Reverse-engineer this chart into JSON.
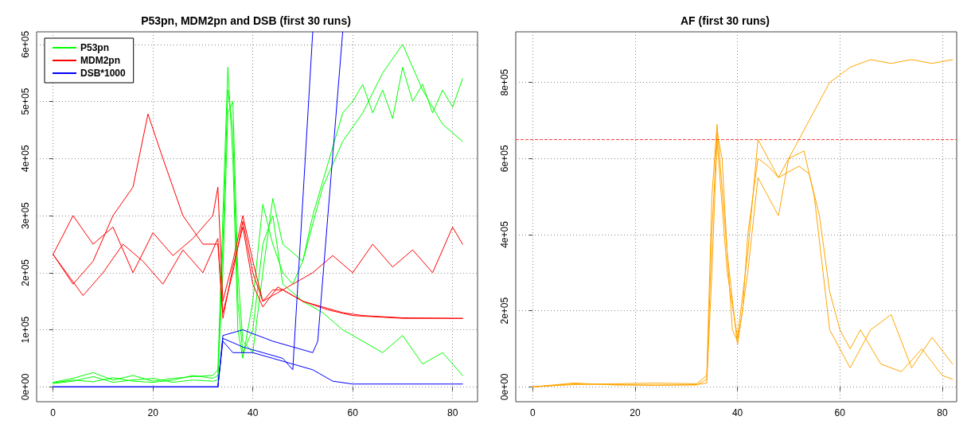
{
  "chart_data": [
    {
      "type": "line",
      "title": "P53pn, MDM2pn and DSB (first 30 runs)",
      "xlim": [
        -3.3,
        85
      ],
      "ylim": [
        -26000,
        622000
      ],
      "xticks": [
        0,
        20,
        40,
        60,
        80
      ],
      "yticks": [
        {
          "value": 0,
          "label": "0e+00"
        },
        {
          "value": 100000,
          "label": "1e+05"
        },
        {
          "value": 200000,
          "label": "2e+05"
        },
        {
          "value": 300000,
          "label": "3e+05"
        },
        {
          "value": 400000,
          "label": "4e+05"
        },
        {
          "value": 500000,
          "label": "5e+05"
        },
        {
          "value": 600000,
          "label": "6e+05"
        }
      ],
      "grid": true,
      "legend": "top left",
      "marker": "none",
      "line_style": "solid",
      "series": [
        {
          "name": "P53pn",
          "color": "#00ff00",
          "x": [
            0,
            4,
            8,
            12,
            16,
            20,
            24,
            28,
            32,
            33,
            34,
            35,
            36,
            37,
            38,
            40,
            42,
            44,
            46,
            48,
            50,
            52,
            54,
            56,
            58,
            60,
            62,
            64,
            66,
            68,
            70,
            72,
            74,
            76,
            78,
            80,
            82
          ],
          "values": [
            8000,
            15000,
            25000,
            12000,
            20000,
            10000,
            15000,
            18000,
            20000,
            30000,
            300000,
            560000,
            400000,
            100000,
            50000,
            150000,
            320000,
            250000,
            200000,
            180000,
            220000,
            300000,
            360000,
            420000,
            480000,
            500000,
            530000,
            480000,
            520000,
            470000,
            560000,
            500000,
            530000,
            480000,
            520000,
            490000,
            540000
          ]
        },
        {
          "color": "#00ff00",
          "x": [
            0,
            4,
            8,
            12,
            16,
            20,
            24,
            28,
            32,
            33,
            34,
            35,
            36,
            37,
            38,
            40,
            42,
            44,
            46,
            50,
            54,
            58,
            62,
            66,
            70,
            74,
            78,
            82
          ],
          "values": [
            6000,
            10000,
            18000,
            8000,
            12000,
            15000,
            8000,
            12000,
            10000,
            12000,
            250000,
            520000,
            450000,
            150000,
            60000,
            100000,
            250000,
            300000,
            180000,
            150000,
            130000,
            100000,
            80000,
            60000,
            90000,
            40000,
            60000,
            20000
          ]
        },
        {
          "color": "#00ff00",
          "x": [
            0,
            4,
            8,
            12,
            16,
            20,
            24,
            28,
            32,
            33,
            34,
            35,
            36,
            37,
            38,
            40,
            42,
            44,
            46,
            50,
            54,
            58,
            62,
            66,
            70,
            74,
            78,
            82
          ],
          "values": [
            7000,
            12000,
            9000,
            16000,
            10000,
            8000,
            12000,
            20000,
            15000,
            20000,
            200000,
            480000,
            500000,
            200000,
            80000,
            60000,
            200000,
            330000,
            250000,
            220000,
            350000,
            430000,
            480000,
            550000,
            600000,
            520000,
            460000,
            430000
          ]
        },
        {
          "name": "MDM2pn",
          "color": "#ff0000",
          "x": [
            0,
            4,
            8,
            12,
            16,
            20,
            24,
            28,
            32,
            33,
            34,
            36,
            38,
            40,
            42,
            44,
            46,
            50,
            54,
            58,
            62,
            70,
            82
          ],
          "values": [
            232000,
            300000,
            250000,
            280000,
            200000,
            270000,
            230000,
            260000,
            300000,
            350000,
            150000,
            220000,
            300000,
            220000,
            150000,
            170000,
            170000,
            150000,
            140000,
            130000,
            125000,
            121000,
            120000
          ]
        },
        {
          "color": "#ff0000",
          "x": [
            0,
            4,
            8,
            12,
            16,
            19,
            22,
            26,
            30,
            33,
            34,
            36,
            38,
            40,
            42,
            44,
            48,
            52,
            56,
            60,
            64,
            68,
            72,
            76,
            80,
            82
          ],
          "values": [
            232000,
            180000,
            220000,
            300000,
            350000,
            478000,
            400000,
            300000,
            250000,
            250000,
            130000,
            200000,
            290000,
            200000,
            150000,
            160000,
            180000,
            200000,
            230000,
            200000,
            250000,
            210000,
            240000,
            200000,
            280000,
            250000
          ]
        },
        {
          "color": "#ff0000",
          "x": [
            0,
            6,
            10,
            14,
            18,
            22,
            26,
            30,
            33,
            34,
            36,
            38,
            40,
            42,
            45,
            50,
            55,
            60,
            70,
            82
          ],
          "values": [
            232000,
            160000,
            200000,
            250000,
            220000,
            180000,
            240000,
            200000,
            260000,
            120000,
            210000,
            280000,
            180000,
            140000,
            175000,
            150000,
            135000,
            125000,
            120000,
            120000
          ]
        },
        {
          "name": "DSB*1000",
          "color": "#0000ff",
          "x": [
            0,
            33,
            34,
            36,
            40,
            44,
            48,
            52,
            56,
            60,
            70,
            82
          ],
          "values": [
            0,
            0,
            80000,
            60000,
            60000,
            50000,
            40000,
            30000,
            10000,
            5000,
            5000,
            5000
          ]
        },
        {
          "color": "#0000ff",
          "x": [
            0,
            33,
            34,
            38,
            44,
            48,
            52,
            53,
            58
          ],
          "values": [
            0,
            0,
            90000,
            100000,
            80000,
            70000,
            60000,
            80000,
            622000
          ]
        },
        {
          "color": "#0000ff",
          "x": [
            0,
            33,
            34,
            38,
            42,
            46,
            48,
            52
          ],
          "values": [
            0,
            0,
            85000,
            70000,
            60000,
            50000,
            30000,
            622000
          ]
        }
      ]
    },
    {
      "type": "line",
      "title": "AF (first 30 runs)",
      "xlim": [
        -3.3,
        82.8
      ],
      "ylim": [
        -39000,
        933000
      ],
      "xticks": [
        0,
        20,
        40,
        60,
        80
      ],
      "yticks": [
        {
          "value": 0,
          "label": "0e+00"
        },
        {
          "value": 200000,
          "label": "2e+05"
        },
        {
          "value": 400000,
          "label": "4e+05"
        },
        {
          "value": 600000,
          "label": "6e+05"
        },
        {
          "value": 800000,
          "label": "8e+05"
        }
      ],
      "grid": true,
      "marker": "none",
      "line_style": "solid",
      "ref_lines": [
        {
          "axis": "y",
          "value": 650000,
          "color": "#ff4040",
          "line_style": "dashed"
        }
      ],
      "series": [
        {
          "color": "#ffa500",
          "x": [
            0,
            8,
            16,
            24,
            32,
            34,
            35,
            36,
            37,
            38,
            39,
            40,
            41,
            42,
            44,
            46,
            48,
            50,
            54,
            58,
            62,
            66,
            70,
            74,
            78,
            82
          ],
          "values": [
            0,
            10000,
            5000,
            5000,
            5000,
            20000,
            400000,
            670000,
            600000,
            350000,
            150000,
            120000,
            200000,
            400000,
            600000,
            580000,
            550000,
            600000,
            700000,
            800000,
            840000,
            860000,
            850000,
            860000,
            850000,
            860000
          ]
        },
        {
          "color": "#ffa500",
          "x": [
            0,
            8,
            16,
            24,
            32,
            34,
            35,
            36,
            38,
            40,
            42,
            44,
            46,
            48,
            52,
            54,
            56,
            58,
            60,
            62,
            64,
            68,
            72,
            76,
            80,
            82
          ],
          "values": [
            0,
            8000,
            6000,
            4000,
            6000,
            10000,
            300000,
            650000,
            300000,
            130000,
            350000,
            650000,
            600000,
            550000,
            580000,
            560000,
            450000,
            250000,
            150000,
            100000,
            150000,
            60000,
            40000,
            100000,
            30000,
            20000
          ]
        },
        {
          "color": "#ffa500",
          "x": [
            0,
            8,
            16,
            24,
            32,
            34,
            35,
            36,
            38,
            40,
            42,
            44,
            48,
            50,
            53,
            55,
            58,
            62,
            66,
            70,
            74,
            78,
            82
          ],
          "values": [
            0,
            6000,
            8000,
            10000,
            8000,
            30000,
            500000,
            690000,
            350000,
            110000,
            300000,
            550000,
            450000,
            600000,
            620000,
            500000,
            150000,
            50000,
            150000,
            190000,
            50000,
            130000,
            60000
          ]
        }
      ]
    }
  ]
}
